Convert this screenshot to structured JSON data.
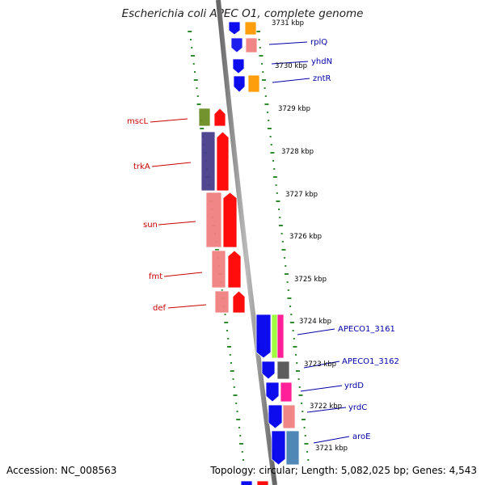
{
  "title": "Escherichia coli APEC O1, complete genome",
  "footer": {
    "accession": "Accession: NC_008563",
    "topology": "Topology: circular; Length: 5,082,025 bp; Genes: 4,543"
  },
  "colors": {
    "background": "#ffffff",
    "backbone": "#888888",
    "tick_dots": "#2e8b2e",
    "left_labels": "#cc0000",
    "right_labels": "#0000aa"
  },
  "scale_labels": [
    {
      "id": "kbp-3731",
      "text": "3731 kbp"
    },
    {
      "id": "kbp-3730",
      "text": "3730 kbp"
    },
    {
      "id": "kbp-3729",
      "text": "3729 kbp"
    },
    {
      "id": "kbp-3728",
      "text": "3728 kbp"
    },
    {
      "id": "kbp-3727",
      "text": "3727 kbp"
    },
    {
      "id": "kbp-3726",
      "text": "3726 kbp"
    },
    {
      "id": "kbp-3725",
      "text": "3725 kbp"
    },
    {
      "id": "kbp-3724",
      "text": "3724 kbp"
    },
    {
      "id": "kbp-3723",
      "text": "3723 kbp"
    },
    {
      "id": "kbp-3722",
      "text": "3722 kbp"
    },
    {
      "id": "kbp-3721",
      "text": "3721 kbp"
    }
  ],
  "gene_labels_left": [
    {
      "id": "mscL",
      "text": "mscL"
    },
    {
      "id": "trkA",
      "text": "trkA"
    },
    {
      "id": "sun",
      "text": "sun"
    },
    {
      "id": "fmt",
      "text": "fmt"
    },
    {
      "id": "def",
      "text": "def"
    }
  ],
  "gene_labels_right": [
    {
      "id": "rplQ",
      "text": "rplQ"
    },
    {
      "id": "yhdN",
      "text": "yhdN"
    },
    {
      "id": "zntR",
      "text": "zntR"
    },
    {
      "id": "APECO1_3161",
      "text": "APECO1_3161"
    },
    {
      "id": "APECO1_3162",
      "text": "APECO1_3162"
    },
    {
      "id": "yrdD",
      "text": "yrdD"
    },
    {
      "id": "yrdC",
      "text": "yrdC"
    },
    {
      "id": "aroE",
      "text": "aroE"
    }
  ]
}
